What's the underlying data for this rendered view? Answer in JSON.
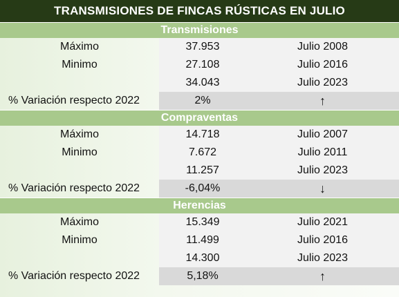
{
  "title": "TRANSMISIONES DE FINCAS RÚSTICAS EN JULIO",
  "sections": [
    {
      "heading": "Transmisiones",
      "rows": [
        {
          "label": "Máximo",
          "value": "37.953",
          "period": "Julio 2008"
        },
        {
          "label": "Minimo",
          "value": "27.108",
          "period": "Julio 2016"
        },
        {
          "label": "",
          "value": "34.043",
          "period": "Julio 2023"
        }
      ],
      "variation": {
        "label": "% Variación respecto 2022",
        "value": "2%",
        "arrow": "↑",
        "arrow_icon": "arrow-up-icon"
      }
    },
    {
      "heading": "Compraventas",
      "rows": [
        {
          "label": "Máximo",
          "value": "14.718",
          "period": "Julio 2007"
        },
        {
          "label": "Minimo",
          "value": "7.672",
          "period": "Julio 2011"
        },
        {
          "label": "",
          "value": "11.257",
          "period": "Julio 2023"
        }
      ],
      "variation": {
        "label": "% Variación respecto 2022",
        "value": "-6,04%",
        "arrow": "↓",
        "arrow_icon": "arrow-down-icon"
      }
    },
    {
      "heading": "Herencias",
      "rows": [
        {
          "label": "Máximo",
          "value": "15.349",
          "period": "Julio 2021"
        },
        {
          "label": "Minimo",
          "value": "11.499",
          "period": "Julio 2016"
        },
        {
          "label": "",
          "value": "14.300",
          "period": "Julio 2023"
        }
      ],
      "variation": {
        "label": "% Variación respecto 2022",
        "value": "5,18%",
        "arrow": "↑",
        "arrow_icon": "arrow-up-icon"
      }
    }
  ],
  "colors": {
    "title_bg": "#263a16",
    "section_bg": "#a8c98c",
    "value_bg": "#f2f2f2",
    "variation_bg": "#d9d9d9"
  }
}
